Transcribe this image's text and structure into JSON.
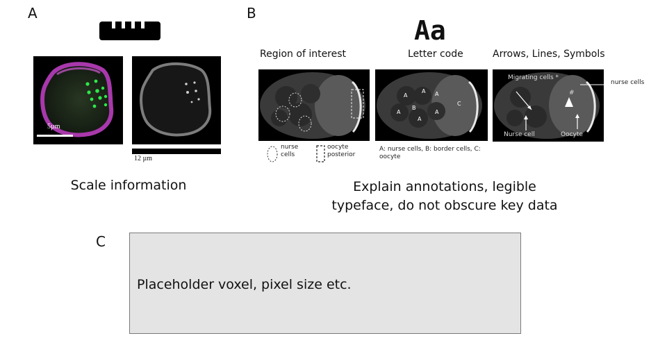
{
  "panels": {
    "a": {
      "letter": "A",
      "scale_label_left": "5µm",
      "scale_label_right": "12 µm",
      "caption": "Scale information"
    },
    "b": {
      "letter": "B",
      "aa_glyph": "Aa",
      "col1_title": "Region of interest",
      "col2_title": "Letter code",
      "col3_title": "Arrows, Lines, Symbols",
      "legend_nurse": "nurse cells",
      "legend_oocyte": "oocyte posterior",
      "letter_code_legend": "A: nurse cells, B: border cells, C: oocyte",
      "letters": [
        "A",
        "A",
        "A",
        "A",
        "B",
        "A",
        "A",
        "C"
      ],
      "arrow_labels": {
        "migrating": "Migrating cells *",
        "nurse_cells": "nurse cells",
        "hash": "#",
        "nurse_cell": "Nurse cell",
        "oocyte": "Oocyte"
      },
      "caption_line1": "Explain annotations, legible",
      "caption_line2": "typeface, do not obscure key data"
    },
    "c": {
      "letter": "C",
      "placeholder_text": "Placeholder voxel, pixel size etc."
    }
  },
  "colors": {
    "magenta": "#c040c0",
    "green": "#2ee84a",
    "placeholder_bg": "#e4e4e4"
  }
}
